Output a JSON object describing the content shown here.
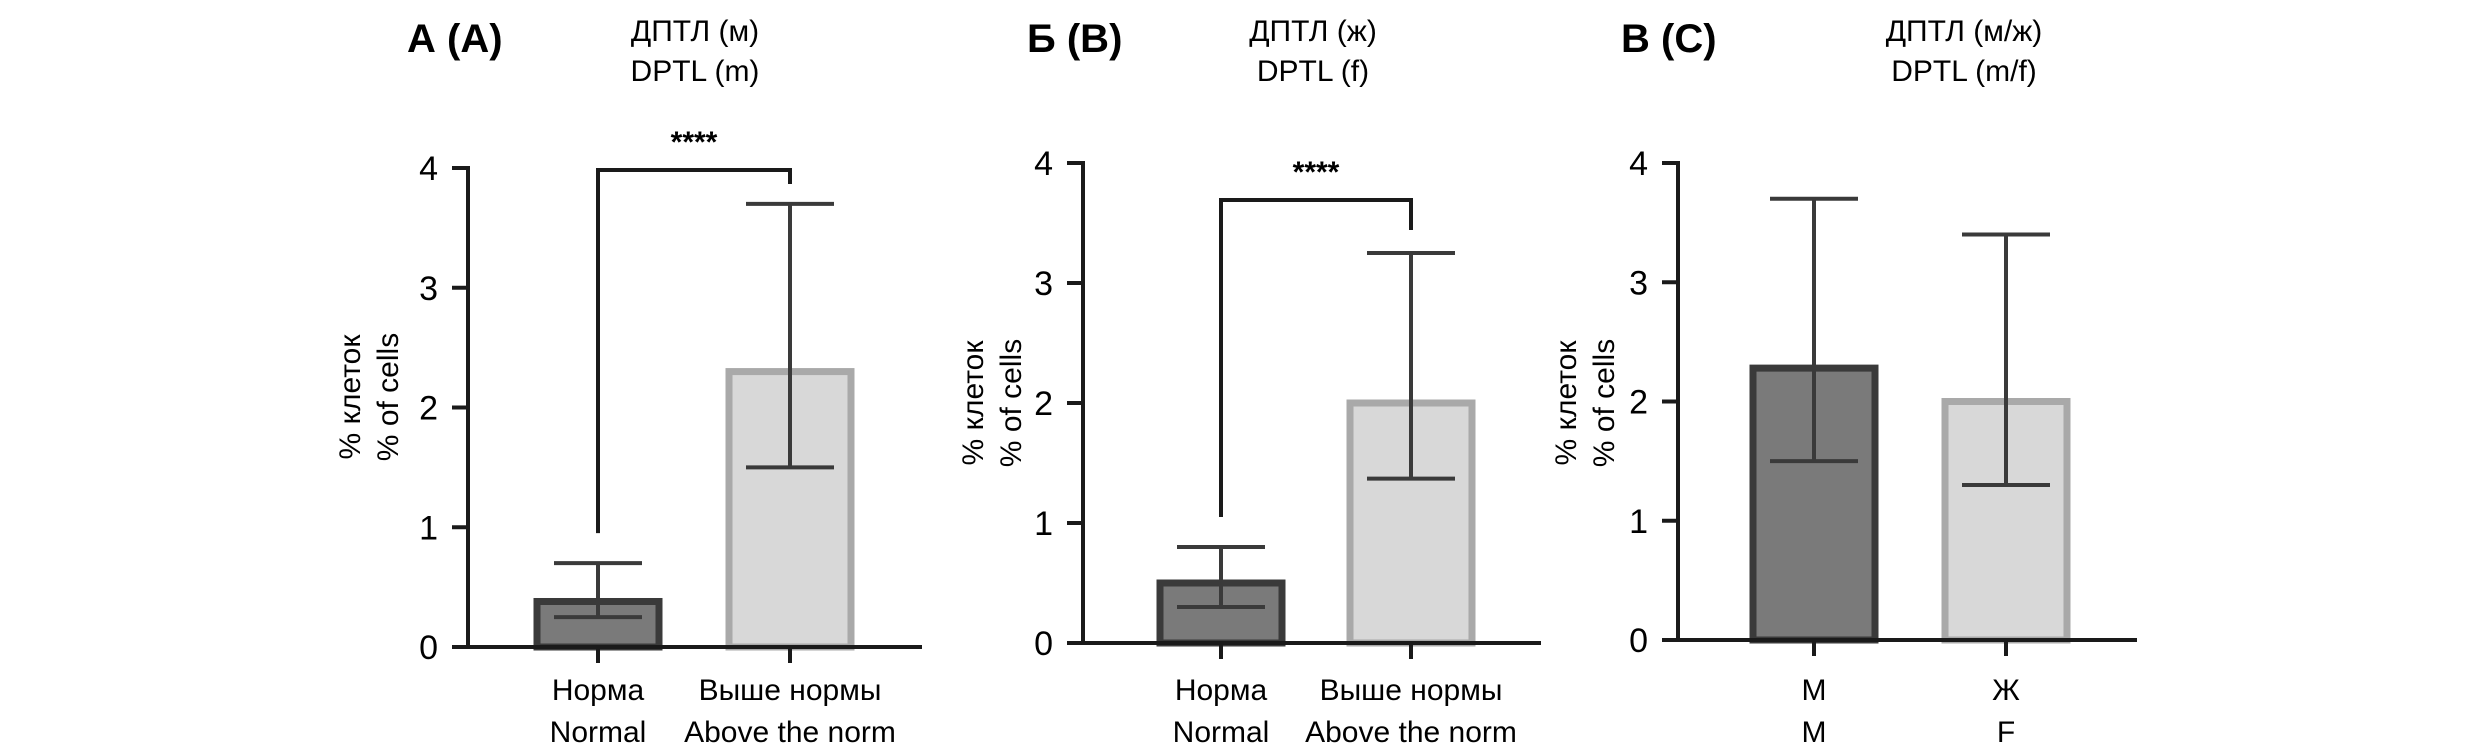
{
  "chart_data": [
    {
      "type": "bar",
      "panel_label": "А (A)",
      "title": [
        "ДПТЛ (м)",
        "DPTL (m)"
      ],
      "ylabel": [
        "% клеток",
        "% of cells"
      ],
      "ylim": [
        0,
        4
      ],
      "yticks": [
        "0",
        "1",
        "2",
        "3",
        "4"
      ],
      "categories": [
        [
          "Норма",
          "Normal"
        ],
        [
          "Выше нормы",
          "Above the norm"
        ]
      ],
      "values": [
        0.38,
        2.3
      ],
      "error_upper": [
        0.7,
        3.7
      ],
      "error_lower": [
        0.25,
        1.5
      ],
      "bar_colors": [
        "#7a7a7a",
        "#d8d8d8"
      ],
      "edge_colors": [
        "#3a3a3a",
        "#a9a9a9"
      ],
      "significance": {
        "label": "****",
        "from": 0,
        "to": 1
      }
    },
    {
      "type": "bar",
      "panel_label": "Б (B)",
      "title": [
        "ДПТЛ (ж)",
        "DPTL (f)"
      ],
      "ylabel": [
        "% клеток",
        "% of cells"
      ],
      "ylim": [
        0,
        4
      ],
      "yticks": [
        "0",
        "1",
        "2",
        "3",
        "4"
      ],
      "categories": [
        [
          "Норма",
          "Normal"
        ],
        [
          "Выше нормы",
          "Above the norm"
        ]
      ],
      "values": [
        0.5,
        2.0
      ],
      "error_upper": [
        0.8,
        3.25
      ],
      "error_lower": [
        0.3,
        1.37
      ],
      "bar_colors": [
        "#7a7a7a",
        "#d8d8d8"
      ],
      "edge_colors": [
        "#3a3a3a",
        "#a9a9a9"
      ],
      "significance": {
        "label": "****",
        "from": 0,
        "to": 1
      }
    },
    {
      "type": "bar",
      "panel_label": "В (C)",
      "title": [
        "ДПТЛ (м/ж)",
        "DPTL (m/f)"
      ],
      "ylabel": [
        "% клеток",
        "% of cells"
      ],
      "ylim": [
        0,
        4
      ],
      "yticks": [
        "0",
        "1",
        "2",
        "3",
        "4"
      ],
      "categories": [
        [
          "М",
          "M"
        ],
        [
          "Ж",
          "F"
        ]
      ],
      "values": [
        2.28,
        2.0
      ],
      "error_upper": [
        3.7,
        3.4
      ],
      "error_lower": [
        1.5,
        1.3
      ],
      "bar_colors": [
        "#7a7a7a",
        "#d8d8d8"
      ],
      "edge_colors": [
        "#3a3a3a",
        "#a9a9a9"
      ],
      "significance": null
    }
  ]
}
